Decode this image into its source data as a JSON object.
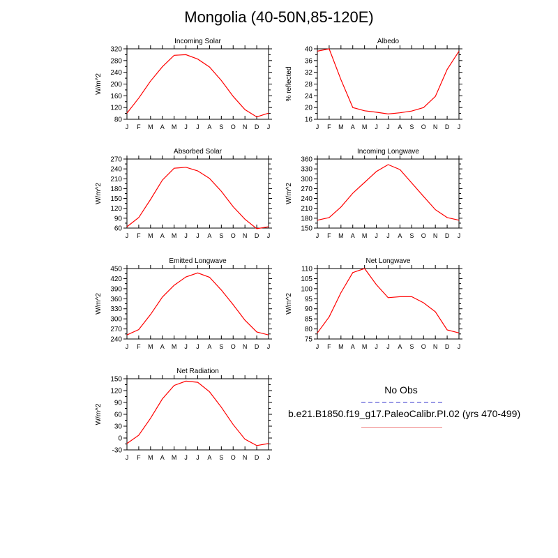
{
  "figure": {
    "title": "Mongolia (40-50N,85-120E)"
  },
  "legend": {
    "obs_label": "No Obs",
    "obs_color": "#9a9ae6",
    "model_label": "b.e21.B1850.f19_g17.PaleoCalibr.PI.02 (yrs 470-499)",
    "model_color": "#ff0000"
  },
  "chart_data": [
    {
      "type": "line",
      "title": "Incoming Solar",
      "ylabel": "W/m^2",
      "xlabel": "",
      "categories": [
        "J",
        "F",
        "M",
        "A",
        "M",
        "J",
        "J",
        "A",
        "S",
        "O",
        "N",
        "D",
        "J"
      ],
      "ylim": [
        80,
        320
      ],
      "yticks": [
        80,
        120,
        160,
        200,
        240,
        280,
        320
      ],
      "series": [
        {
          "values": [
            101,
            152,
            210,
            259,
            298,
            300,
            285,
            258,
            212,
            158,
            113,
            88,
            101
          ]
        }
      ]
    },
    {
      "type": "line",
      "title": "Albedo",
      "ylabel": "% reflected",
      "xlabel": "",
      "categories": [
        "J",
        "F",
        "M",
        "A",
        "M",
        "J",
        "J",
        "A",
        "S",
        "O",
        "N",
        "D",
        "J"
      ],
      "ylim": [
        16,
        40
      ],
      "yticks": [
        16,
        20,
        24,
        28,
        32,
        36,
        40
      ],
      "series": [
        {
          "values": [
            39.2,
            40,
            29.5,
            20,
            18.9,
            18.4,
            17.8,
            18.2,
            18.8,
            20,
            23.8,
            33,
            39.2
          ]
        }
      ]
    },
    {
      "type": "line",
      "title": "Absorbed Solar",
      "ylabel": "W/m^2",
      "xlabel": "",
      "categories": [
        "J",
        "F",
        "M",
        "A",
        "M",
        "J",
        "J",
        "A",
        "S",
        "O",
        "N",
        "D",
        "J"
      ],
      "ylim": [
        60,
        270
      ],
      "yticks": [
        60,
        90,
        120,
        150,
        180,
        210,
        240,
        270
      ],
      "series": [
        {
          "values": [
            64,
            92,
            147,
            206,
            242,
            245,
            234,
            211,
            172,
            125,
            87,
            58,
            64
          ]
        }
      ]
    },
    {
      "type": "line",
      "title": "Incoming Longwave",
      "ylabel": "W/m^2",
      "xlabel": "",
      "categories": [
        "J",
        "F",
        "M",
        "A",
        "M",
        "J",
        "J",
        "A",
        "S",
        "O",
        "N",
        "D",
        "J"
      ],
      "ylim": [
        150,
        360
      ],
      "yticks": [
        150,
        180,
        210,
        240,
        270,
        300,
        330,
        360
      ],
      "series": [
        {
          "values": [
            174,
            182,
            214,
            256,
            289,
            322,
            343,
            328,
            287,
            246,
            206,
            182,
            174
          ]
        }
      ]
    },
    {
      "type": "line",
      "title": "Emitted Longwave",
      "ylabel": "W/m^2",
      "xlabel": "",
      "categories": [
        "J",
        "F",
        "M",
        "A",
        "M",
        "J",
        "J",
        "A",
        "S",
        "O",
        "N",
        "D",
        "J"
      ],
      "ylim": [
        240,
        450
      ],
      "yticks": [
        240,
        270,
        300,
        330,
        360,
        390,
        420,
        450
      ],
      "series": [
        {
          "values": [
            252,
            268,
            313,
            365,
            400,
            425,
            437,
            424,
            386,
            342,
            296,
            261,
            252
          ]
        }
      ]
    },
    {
      "type": "line",
      "title": "Net Longwave",
      "ylabel": "W/m^2",
      "xlabel": "",
      "categories": [
        "J",
        "F",
        "M",
        "A",
        "M",
        "J",
        "J",
        "A",
        "S",
        "O",
        "N",
        "D",
        "J"
      ],
      "ylim": [
        75,
        110
      ],
      "yticks": [
        75,
        80,
        85,
        90,
        95,
        100,
        105,
        110
      ],
      "series": [
        {
          "values": [
            78,
            86,
            98,
            108,
            110,
            102,
            95.5,
            96,
            96,
            93,
            88.5,
            79.5,
            78
          ]
        }
      ]
    },
    {
      "type": "line",
      "title": "Net Radiation",
      "ylabel": "W/m^2",
      "xlabel": "",
      "categories": [
        "J",
        "F",
        "M",
        "A",
        "M",
        "J",
        "J",
        "A",
        "S",
        "O",
        "N",
        "D",
        "J"
      ],
      "ylim": [
        -30,
        150
      ],
      "yticks": [
        -30,
        0,
        30,
        60,
        90,
        120,
        150
      ],
      "series": [
        {
          "values": [
            -14,
            7,
            50,
            99,
            133,
            144,
            141,
            117,
            78,
            34,
            -3,
            -19,
            -14
          ]
        }
      ]
    }
  ]
}
